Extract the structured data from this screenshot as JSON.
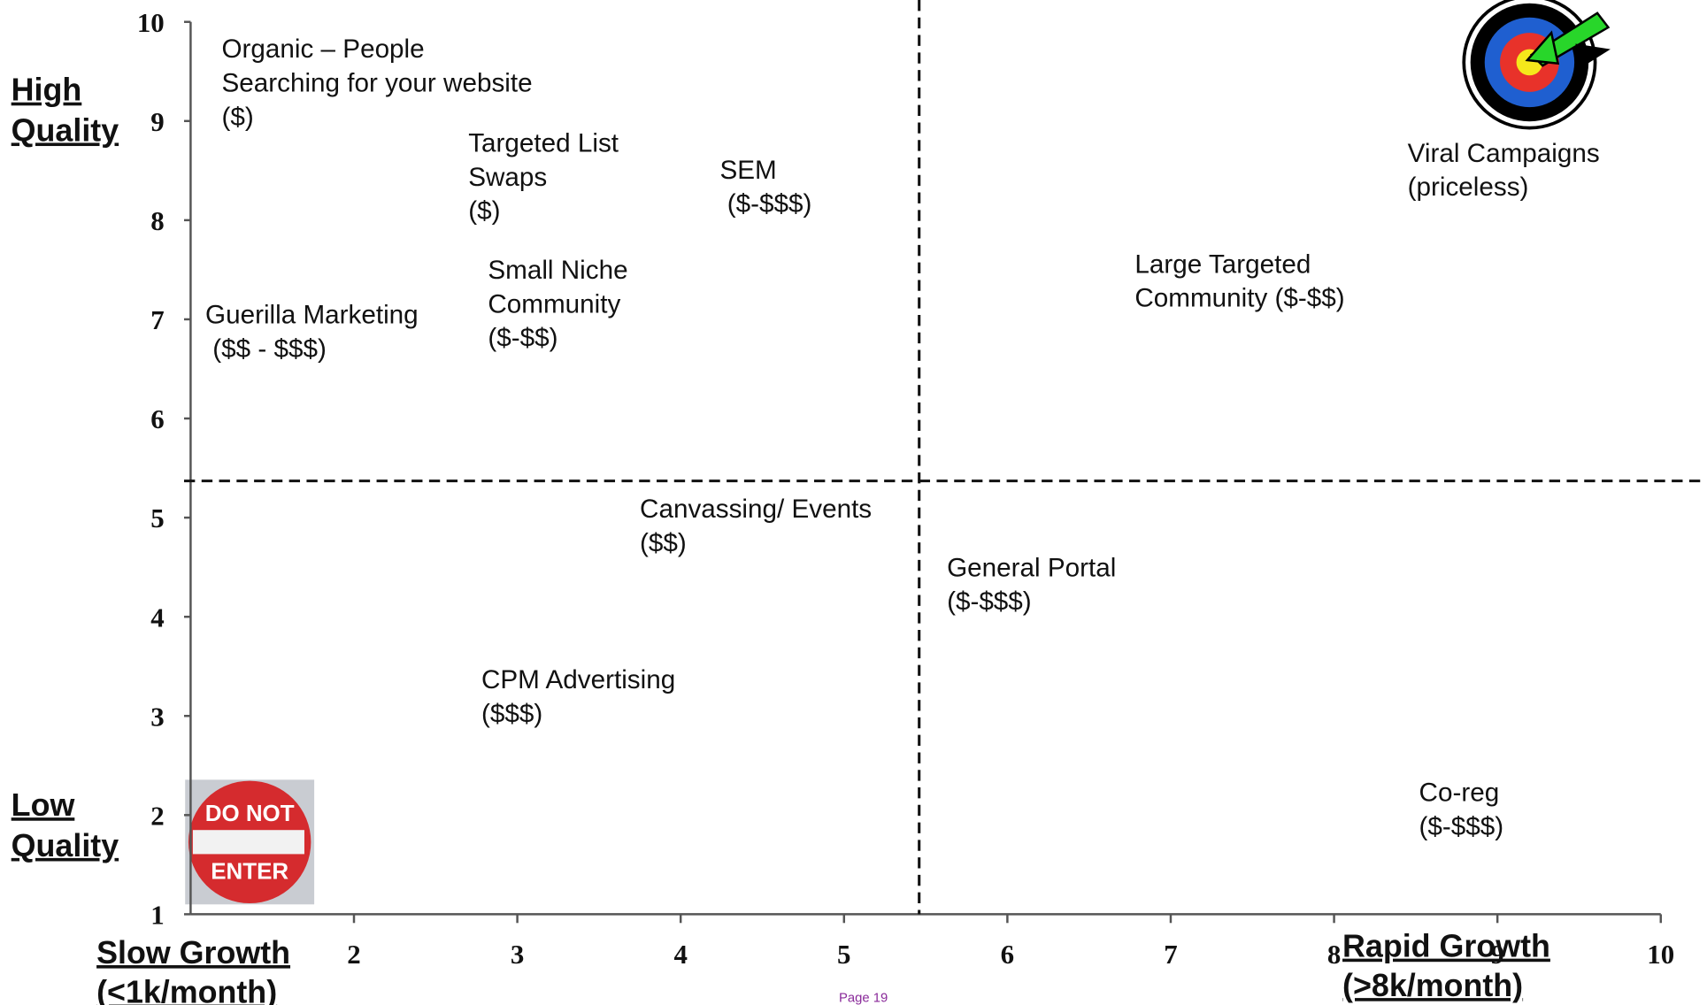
{
  "chart_data": {
    "type": "quadrant",
    "y_label_top": [
      "High",
      "Quality"
    ],
    "y_label_bottom": [
      "Low",
      "Quality"
    ],
    "x_label_left": [
      "Slow Growth",
      "(<1k/month)"
    ],
    "x_label_right": [
      "Rapid Growth",
      "(>8k/month)"
    ],
    "xlim": [
      1,
      10
    ],
    "ylim": [
      1,
      10
    ],
    "xticks": [
      2,
      3,
      4,
      5,
      6,
      7,
      8,
      9,
      10
    ],
    "yticks": [
      1,
      2,
      3,
      4,
      5,
      6,
      7,
      8,
      9,
      10
    ],
    "divider_x": 5.46,
    "divider_y": 5.37,
    "items": [
      {
        "lines": [
          "Organic – People",
          "Searching for your website",
          "($)"
        ],
        "x": 1.19,
        "y": 9.86
      },
      {
        "lines": [
          "Targeted List",
          "Swaps",
          "($)"
        ],
        "x": 2.7,
        "y": 8.91
      },
      {
        "lines": [
          "SEM",
          " ($-$$$)"
        ],
        "x": 4.24,
        "y": 8.64
      },
      {
        "lines": [
          "Small Niche",
          "Community",
          "($-$$)"
        ],
        "x": 2.82,
        "y": 7.63
      },
      {
        "lines": [
          "Guerilla Marketing",
          " ($$ - $$$)"
        ],
        "x": 1.09,
        "y": 7.18
      },
      {
        "lines": [
          "Large Targeted",
          "Community ($-$$)"
        ],
        "x": 6.78,
        "y": 7.69
      },
      {
        "lines": [
          "Viral Campaigns",
          "(priceless)"
        ],
        "x": 8.45,
        "y": 8.81
      },
      {
        "lines": [
          "Canvassing/ Events",
          "($$)"
        ],
        "x": 3.75,
        "y": 5.22
      },
      {
        "lines": [
          "General Portal",
          "($-$$$)"
        ],
        "x": 5.63,
        "y": 4.63
      },
      {
        "lines": [
          "CPM Advertising",
          "($$$)"
        ],
        "x": 2.78,
        "y": 3.5
      },
      {
        "lines": [
          "Co-reg",
          "($-$$$)"
        ],
        "x": 8.52,
        "y": 2.36
      }
    ],
    "sign": [
      "DO NOT",
      "ENTER"
    ],
    "footer": "Page 19"
  }
}
